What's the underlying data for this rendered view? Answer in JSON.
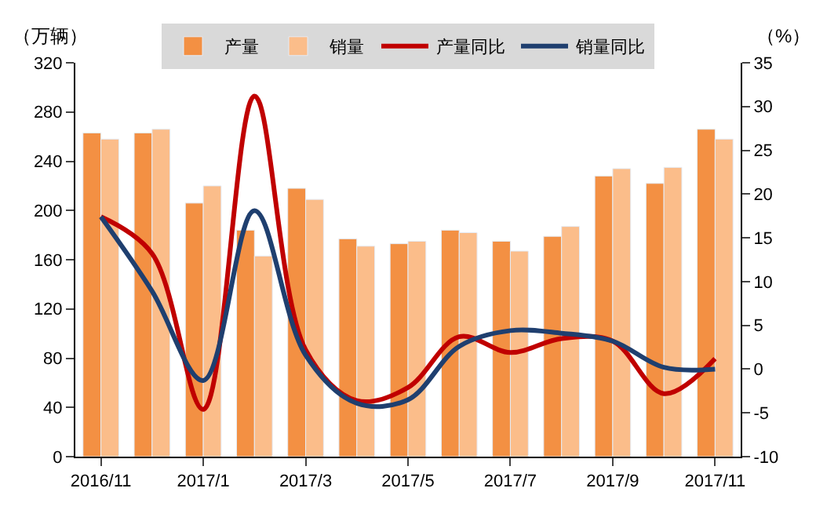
{
  "chart_data": {
    "type": "bar",
    "ylabel": "（万辆）",
    "y2label": "（%）",
    "categories": [
      "2016/11",
      null,
      "2017/1",
      null,
      "2017/3",
      null,
      "2017/5",
      null,
      "2017/7",
      null,
      "2017/9",
      null,
      "2017/11"
    ],
    "series": [
      {
        "name": "产量",
        "color": "#f39043",
        "values": [
          263,
          263,
          206,
          184,
          218,
          177,
          173,
          184,
          175,
          179,
          228,
          222,
          266
        ]
      },
      {
        "name": "销量",
        "color": "#fbbd8a",
        "values": [
          258,
          266,
          220,
          163,
          209,
          171,
          175,
          182,
          167,
          187,
          234,
          235,
          258
        ]
      },
      {
        "name": "产量同比",
        "type": "line",
        "axis": "y2",
        "color": "#c00000",
        "values": [
          17.4,
          13.2,
          -4.6,
          31.2,
          2.2,
          -3.6,
          -2.1,
          3.7,
          1.9,
          3.5,
          3.2,
          -2.8,
          1.2
        ]
      },
      {
        "name": "销量同比",
        "type": "line",
        "axis": "y2",
        "color": "#1f3f6f",
        "values": [
          17.4,
          8.9,
          -1.3,
          18.1,
          1.6,
          -3.9,
          -3.5,
          2.6,
          4.4,
          4.1,
          3.2,
          0.2,
          0
        ]
      }
    ],
    "ylim": [
      0,
      320
    ],
    "yticks": [
      0,
      40,
      80,
      120,
      160,
      200,
      240,
      280,
      320
    ],
    "y2lim": [
      -10,
      35
    ],
    "y2ticks": [
      -10,
      -5,
      0,
      5,
      10,
      15,
      20,
      25,
      30,
      35
    ],
    "legend": "top"
  }
}
